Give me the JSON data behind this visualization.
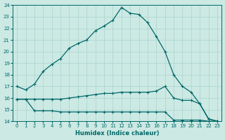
{
  "background_color": "#cce9e4",
  "grid_color": "#b0d8d0",
  "line_color": "#006868",
  "xlabel": "Humidex (Indice chaleur)",
  "ylim": [
    14,
    24
  ],
  "xlim": [
    -0.5,
    23.5
  ],
  "yticks": [
    14,
    15,
    16,
    17,
    18,
    19,
    20,
    21,
    22,
    23,
    24
  ],
  "xticks": [
    0,
    1,
    2,
    3,
    4,
    5,
    6,
    7,
    8,
    9,
    10,
    11,
    12,
    13,
    14,
    15,
    16,
    17,
    18,
    19,
    20,
    21,
    22,
    23
  ],
  "line1_x": [
    0,
    1,
    2,
    3,
    4,
    5,
    6,
    7,
    8,
    9,
    10,
    11,
    12,
    13,
    14,
    15,
    16,
    17,
    18,
    19,
    20,
    21,
    22,
    23
  ],
  "line1_y": [
    17.0,
    16.7,
    17.2,
    18.3,
    18.9,
    19.4,
    20.3,
    20.7,
    21.0,
    21.8,
    22.2,
    22.7,
    23.8,
    23.3,
    23.2,
    22.5,
    21.3,
    20.0,
    18.0,
    17.0,
    16.5,
    15.5,
    14.2,
    14.0
  ],
  "line2_x": [
    0,
    1,
    2,
    3,
    4,
    5,
    6,
    7,
    8,
    9,
    10,
    11,
    12,
    13,
    14,
    15,
    16,
    17,
    18,
    19,
    20,
    21,
    22,
    23
  ],
  "line2_y": [
    15.9,
    15.9,
    15.9,
    15.9,
    15.9,
    15.9,
    16.0,
    16.1,
    16.2,
    16.3,
    16.4,
    16.4,
    16.5,
    16.5,
    16.5,
    16.5,
    16.6,
    17.0,
    16.0,
    15.8,
    15.8,
    15.5,
    14.2,
    14.0
  ],
  "line3_x": [
    0,
    1,
    2,
    3,
    4,
    5,
    6,
    7,
    8,
    9,
    10,
    11,
    12,
    13,
    14,
    15,
    16,
    17,
    18,
    19,
    20,
    21,
    22,
    23
  ],
  "line3_y": [
    15.9,
    15.9,
    14.9,
    14.9,
    14.9,
    14.8,
    14.8,
    14.8,
    14.8,
    14.8,
    14.8,
    14.8,
    14.8,
    14.8,
    14.8,
    14.8,
    14.8,
    14.8,
    14.1,
    14.1,
    14.1,
    14.1,
    14.0,
    14.0
  ]
}
